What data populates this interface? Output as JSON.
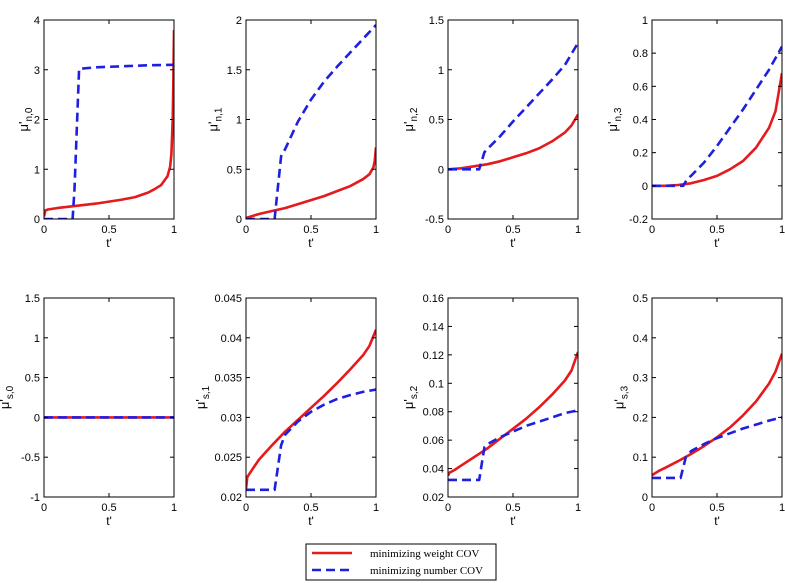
{
  "colors": {
    "weight": "#e41a1c",
    "number": "#1f1fe0",
    "axis": "#000000"
  },
  "legend": {
    "position": "bottom-center",
    "entries": [
      {
        "label": "minimizing weight COV",
        "style": "solid",
        "color": "#e41a1c"
      },
      {
        "label": "minimizing number COV",
        "style": "dashed",
        "color": "#1f1fe0"
      }
    ]
  },
  "chart_data": [
    {
      "type": "line",
      "xlabel": "t'",
      "ylabel": {
        "main": "μ'",
        "sub": "n,0"
      },
      "xlim": [
        0,
        1
      ],
      "ylim": [
        0,
        4
      ],
      "xticks": [
        "0",
        "0.5",
        "1"
      ],
      "yticks": [
        "0",
        "1",
        "2",
        "3",
        "4"
      ],
      "series": [
        {
          "key": "weight",
          "style": "solid",
          "x": [
            0,
            0.01,
            0.03,
            0.1,
            0.2,
            0.3,
            0.4,
            0.5,
            0.6,
            0.7,
            0.8,
            0.85,
            0.9,
            0.95,
            0.97,
            0.98,
            0.99,
            0.995,
            1
          ],
          "y": [
            0.05,
            0.17,
            0.19,
            0.22,
            0.25,
            0.28,
            0.31,
            0.35,
            0.39,
            0.44,
            0.53,
            0.6,
            0.68,
            0.86,
            1.05,
            1.3,
            2.0,
            2.7,
            3.8
          ]
        },
        {
          "key": "number",
          "style": "dashed",
          "x": [
            0,
            0.22,
            0.235,
            0.27,
            0.4,
            0.6,
            0.8,
            1
          ],
          "y": [
            0,
            0,
            0.6,
            3.02,
            3.05,
            3.07,
            3.09,
            3.1
          ]
        }
      ]
    },
    {
      "type": "line",
      "xlabel": "t'",
      "ylabel": {
        "main": "μ'",
        "sub": "n,1"
      },
      "xlim": [
        0,
        1
      ],
      "ylim": [
        0,
        2
      ],
      "xticks": [
        "0",
        "0.5",
        "1"
      ],
      "yticks": [
        "0",
        "0.5",
        "1",
        "1.5",
        "2"
      ],
      "series": [
        {
          "key": "weight",
          "style": "solid",
          "x": [
            0,
            0.1,
            0.2,
            0.3,
            0.4,
            0.5,
            0.6,
            0.7,
            0.8,
            0.9,
            0.95,
            0.98,
            0.99,
            1
          ],
          "y": [
            0.01,
            0.05,
            0.08,
            0.11,
            0.15,
            0.19,
            0.23,
            0.28,
            0.33,
            0.4,
            0.45,
            0.52,
            0.58,
            0.72
          ]
        },
        {
          "key": "number",
          "style": "dashed",
          "x": [
            0,
            0.22,
            0.27,
            0.3,
            0.4,
            0.5,
            0.6,
            0.7,
            0.8,
            0.9,
            1
          ],
          "y": [
            0,
            0,
            0.63,
            0.7,
            0.98,
            1.2,
            1.38,
            1.53,
            1.67,
            1.81,
            1.95
          ]
        }
      ]
    },
    {
      "type": "line",
      "xlabel": "t'",
      "ylabel": {
        "main": "μ'",
        "sub": "n,2"
      },
      "xlim": [
        0,
        1
      ],
      "ylim": [
        -0.5,
        1.5
      ],
      "xticks": [
        "0",
        "0.5",
        "1"
      ],
      "yticks": [
        "-0.5",
        "0",
        "0.5",
        "1",
        "1.5"
      ],
      "series": [
        {
          "key": "weight",
          "style": "solid",
          "x": [
            0,
            0.1,
            0.2,
            0.3,
            0.4,
            0.5,
            0.6,
            0.7,
            0.8,
            0.9,
            0.95,
            1
          ],
          "y": [
            0,
            0.01,
            0.03,
            0.05,
            0.08,
            0.12,
            0.16,
            0.21,
            0.28,
            0.37,
            0.44,
            0.55
          ]
        },
        {
          "key": "number",
          "style": "dashed",
          "x": [
            0,
            0.24,
            0.28,
            0.3,
            0.4,
            0.5,
            0.6,
            0.7,
            0.8,
            0.9,
            1
          ],
          "y": [
            0,
            0,
            0.17,
            0.2,
            0.33,
            0.48,
            0.62,
            0.76,
            0.9,
            1.05,
            1.27
          ]
        }
      ]
    },
    {
      "type": "line",
      "xlabel": "t'",
      "ylabel": {
        "main": "μ'",
        "sub": "n,3"
      },
      "xlim": [
        0,
        1
      ],
      "ylim": [
        -0.2,
        1
      ],
      "xticks": [
        "0",
        "0.5",
        "1"
      ],
      "yticks": [
        "-0.2",
        "0",
        "0.2",
        "0.4",
        "0.6",
        "0.8",
        "1"
      ],
      "series": [
        {
          "key": "weight",
          "style": "solid",
          "x": [
            0,
            0.1,
            0.2,
            0.3,
            0.4,
            0.5,
            0.6,
            0.7,
            0.8,
            0.9,
            0.95,
            1
          ],
          "y": [
            0,
            0,
            0.005,
            0.015,
            0.035,
            0.06,
            0.1,
            0.15,
            0.23,
            0.35,
            0.45,
            0.68
          ]
        },
        {
          "key": "number",
          "style": "dashed",
          "x": [
            0,
            0.24,
            0.27,
            0.3,
            0.4,
            0.5,
            0.6,
            0.7,
            0.8,
            0.9,
            1
          ],
          "y": [
            0,
            0,
            0.04,
            0.06,
            0.14,
            0.24,
            0.35,
            0.46,
            0.58,
            0.7,
            0.84
          ]
        }
      ]
    },
    {
      "type": "line",
      "xlabel": "t'",
      "ylabel": {
        "main": "μ'",
        "sub": "s,0"
      },
      "xlim": [
        0,
        1
      ],
      "ylim": [
        -1,
        1.5
      ],
      "xticks": [
        "0",
        "0.5",
        "1"
      ],
      "yticks": [
        "-1",
        "-0.5",
        "0",
        "0.5",
        "1",
        "1.5"
      ],
      "series": [
        {
          "key": "weight",
          "style": "solid",
          "x": [
            0,
            1
          ],
          "y": [
            0,
            0
          ]
        },
        {
          "key": "number",
          "style": "dashed",
          "x": [
            0,
            1
          ],
          "y": [
            0,
            0
          ]
        }
      ]
    },
    {
      "type": "line",
      "xlabel": "t'",
      "ylabel": {
        "main": "μ'",
        "sub": "s,1"
      },
      "xlim": [
        0,
        1
      ],
      "ylim": [
        0.02,
        0.045
      ],
      "xticks": [
        "0",
        "0.5",
        "1"
      ],
      "yticks": [
        "0.02",
        "0.025",
        "0.03",
        "0.035",
        "0.04",
        "0.045"
      ],
      "series": [
        {
          "key": "weight",
          "style": "solid",
          "x": [
            0,
            0.01,
            0.05,
            0.1,
            0.2,
            0.3,
            0.4,
            0.5,
            0.6,
            0.7,
            0.8,
            0.9,
            0.95,
            1
          ],
          "y": [
            0.021,
            0.0225,
            0.0235,
            0.0247,
            0.0265,
            0.0282,
            0.0297,
            0.0312,
            0.0327,
            0.0343,
            0.036,
            0.0378,
            0.039,
            0.041
          ]
        },
        {
          "key": "number",
          "style": "dashed",
          "x": [
            0,
            0.22,
            0.27,
            0.3,
            0.4,
            0.5,
            0.6,
            0.7,
            0.8,
            0.9,
            1
          ],
          "y": [
            0.0209,
            0.0209,
            0.0265,
            0.0278,
            0.0295,
            0.0307,
            0.0316,
            0.0323,
            0.0328,
            0.0332,
            0.0335
          ]
        }
      ]
    },
    {
      "type": "line",
      "xlabel": "t'",
      "ylabel": {
        "main": "μ'",
        "sub": "s,2"
      },
      "xlim": [
        0,
        1
      ],
      "ylim": [
        0.02,
        0.16
      ],
      "xticks": [
        "0",
        "0.5",
        "1"
      ],
      "yticks": [
        "0.02",
        "0.04",
        "0.06",
        "0.08",
        "0.1",
        "0.12",
        "0.14",
        "0.16"
      ],
      "series": [
        {
          "key": "weight",
          "style": "solid",
          "x": [
            0,
            0.01,
            0.05,
            0.1,
            0.2,
            0.3,
            0.4,
            0.5,
            0.6,
            0.7,
            0.8,
            0.9,
            0.95,
            1
          ],
          "y": [
            0.035,
            0.037,
            0.039,
            0.042,
            0.048,
            0.054,
            0.061,
            0.068,
            0.075,
            0.083,
            0.092,
            0.102,
            0.109,
            0.122
          ]
        },
        {
          "key": "number",
          "style": "dashed",
          "x": [
            0,
            0.24,
            0.28,
            0.3,
            0.4,
            0.5,
            0.6,
            0.7,
            0.8,
            0.9,
            1
          ],
          "y": [
            0.032,
            0.032,
            0.055,
            0.057,
            0.062,
            0.066,
            0.07,
            0.073,
            0.076,
            0.079,
            0.081
          ]
        }
      ]
    },
    {
      "type": "line",
      "xlabel": "t'",
      "ylabel": {
        "main": "μ'",
        "sub": "s,3"
      },
      "xlim": [
        0,
        1
      ],
      "ylim": [
        0,
        0.5
      ],
      "xticks": [
        "0",
        "0.5",
        "1"
      ],
      "yticks": [
        "0",
        "0.1",
        "0.2",
        "0.3",
        "0.4",
        "0.5"
      ],
      "series": [
        {
          "key": "weight",
          "style": "solid",
          "x": [
            0,
            0.05,
            0.1,
            0.2,
            0.3,
            0.4,
            0.5,
            0.6,
            0.7,
            0.8,
            0.9,
            0.95,
            1
          ],
          "y": [
            0.055,
            0.065,
            0.073,
            0.09,
            0.108,
            0.128,
            0.15,
            0.175,
            0.205,
            0.24,
            0.285,
            0.315,
            0.36
          ]
        },
        {
          "key": "number",
          "style": "dashed",
          "x": [
            0,
            0.22,
            0.26,
            0.3,
            0.4,
            0.5,
            0.6,
            0.7,
            0.8,
            0.9,
            1
          ],
          "y": [
            0.048,
            0.048,
            0.1,
            0.115,
            0.133,
            0.148,
            0.16,
            0.172,
            0.182,
            0.192,
            0.2
          ]
        }
      ]
    }
  ]
}
